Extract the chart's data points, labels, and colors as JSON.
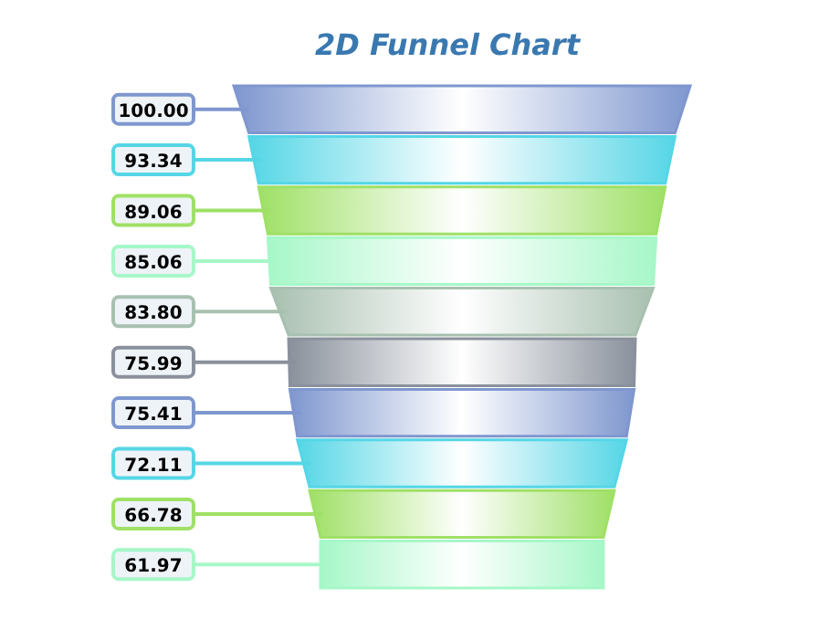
{
  "chart_data": {
    "type": "other",
    "title": "2D Funnel Chart",
    "categories": [
      null,
      null,
      null,
      null,
      null,
      null,
      null,
      null,
      null,
      null
    ],
    "values": [
      100.0,
      93.34,
      89.06,
      85.06,
      83.8,
      75.99,
      75.41,
      72.11,
      66.78,
      61.97
    ],
    "value_labels": [
      "100.00",
      "93.34",
      "89.06",
      "85.06",
      "83.80",
      "75.99",
      "75.41",
      "72.11",
      "66.78",
      "61.97"
    ],
    "colors": [
      "#7f97cf",
      "#55d6e6",
      "#9fe066",
      "#a6f7c8",
      "#a8c0b0",
      "#8a919c",
      "#7f97cf",
      "#55d6e6",
      "#9fe066",
      "#a6f7c8"
    ]
  }
}
